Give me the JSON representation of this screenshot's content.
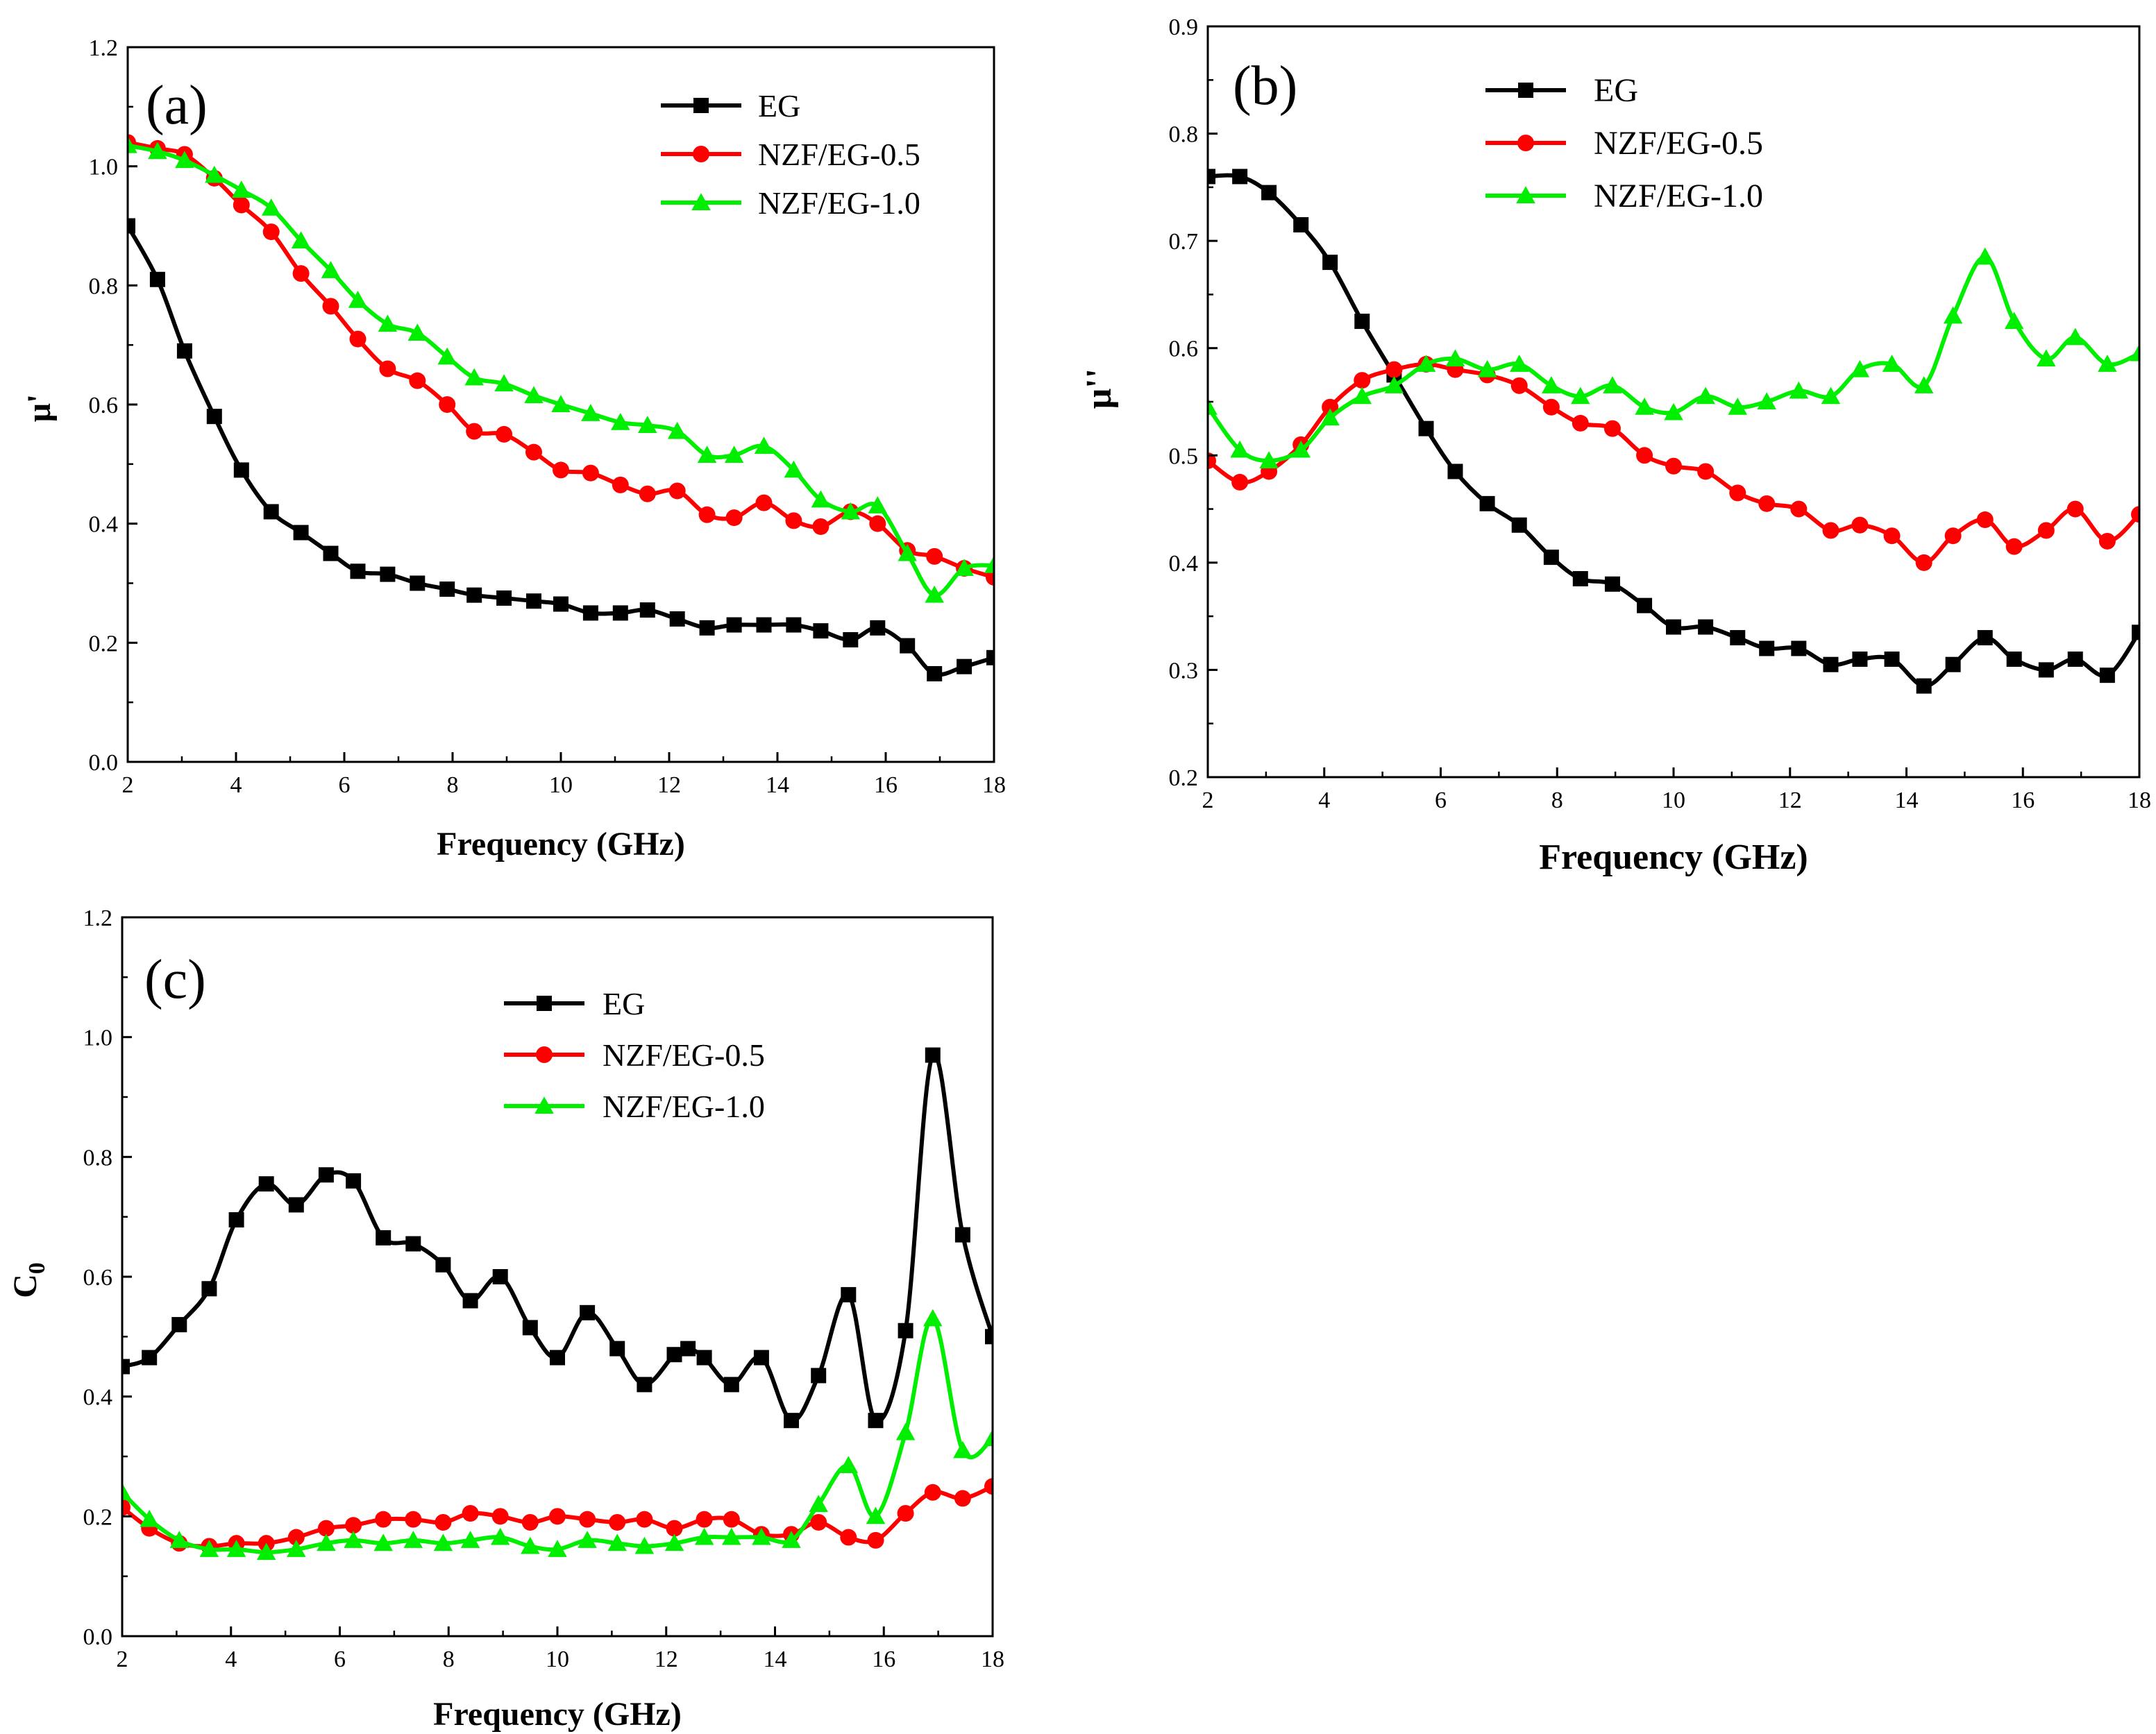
{
  "colors": {
    "EG": "#000000",
    "NZF/EG-0.5": "#ff0000",
    "NZF/EG-1.0": "#00ee00"
  },
  "chart_data": [
    {
      "type": "line",
      "panel": "(a)",
      "title": "",
      "xlabel": "Frequency (GHz)",
      "ylabel": "μ'",
      "xlim": [
        2,
        18
      ],
      "ylim": [
        0.0,
        1.2
      ],
      "xticks": [
        "2",
        "4",
        "6",
        "8",
        "10",
        "12",
        "14",
        "16",
        "18"
      ],
      "yticks": [
        "0.0",
        "0.2",
        "0.4",
        "0.6",
        "0.8",
        "1.0",
        "1.2"
      ],
      "legend_position": "top-right",
      "series": [
        {
          "name": "EG",
          "marker": "square",
          "x": [
            2.0,
            2.55,
            3.05,
            3.6,
            4.1,
            4.65,
            5.2,
            5.75,
            6.25,
            6.8,
            7.35,
            7.9,
            8.4,
            8.95,
            9.5,
            10.0,
            10.55,
            11.1,
            11.6,
            12.15,
            12.7,
            13.2,
            13.75,
            14.3,
            14.8,
            15.35,
            15.85,
            16.4,
            16.9,
            17.45,
            18.0
          ],
          "values": [
            0.9,
            0.81,
            0.69,
            0.58,
            0.49,
            0.42,
            0.385,
            0.35,
            0.32,
            0.315,
            0.3,
            0.29,
            0.28,
            0.275,
            0.27,
            0.265,
            0.25,
            0.25,
            0.255,
            0.24,
            0.225,
            0.23,
            0.23,
            0.23,
            0.22,
            0.205,
            0.225,
            0.195,
            0.148,
            0.16,
            0.175
          ]
        },
        {
          "name": "NZF/EG-0.5",
          "marker": "circle",
          "x": [
            2.0,
            2.55,
            3.05,
            3.6,
            4.1,
            4.65,
            5.2,
            5.75,
            6.25,
            6.8,
            7.35,
            7.9,
            8.4,
            8.95,
            9.5,
            10.0,
            10.55,
            11.1,
            11.6,
            12.15,
            12.7,
            13.2,
            13.75,
            14.3,
            14.8,
            15.35,
            15.85,
            16.4,
            16.9,
            17.45,
            18.0
          ],
          "values": [
            1.04,
            1.03,
            1.02,
            0.98,
            0.935,
            0.89,
            0.82,
            0.765,
            0.71,
            0.66,
            0.64,
            0.6,
            0.555,
            0.55,
            0.52,
            0.49,
            0.485,
            0.465,
            0.45,
            0.455,
            0.415,
            0.41,
            0.435,
            0.405,
            0.395,
            0.42,
            0.4,
            0.355,
            0.345,
            0.325,
            0.31
          ]
        },
        {
          "name": "NZF/EG-1.0",
          "marker": "triangle",
          "x": [
            2.0,
            2.55,
            3.05,
            3.6,
            4.1,
            4.65,
            5.2,
            5.75,
            6.25,
            6.8,
            7.35,
            7.9,
            8.4,
            8.95,
            9.5,
            10.0,
            10.55,
            11.1,
            11.6,
            12.15,
            12.7,
            13.2,
            13.75,
            14.3,
            14.8,
            15.35,
            15.85,
            16.4,
            16.9,
            17.45,
            18.0
          ],
          "values": [
            1.035,
            1.025,
            1.01,
            0.985,
            0.96,
            0.93,
            0.875,
            0.825,
            0.775,
            0.735,
            0.72,
            0.68,
            0.645,
            0.635,
            0.615,
            0.6,
            0.585,
            0.57,
            0.565,
            0.555,
            0.515,
            0.515,
            0.53,
            0.49,
            0.44,
            0.42,
            0.43,
            0.35,
            0.28,
            0.325,
            0.33
          ]
        }
      ]
    },
    {
      "type": "line",
      "panel": "(b)",
      "title": "",
      "xlabel": "Frequency (GHz)",
      "ylabel": "μ''",
      "xlim": [
        2,
        18
      ],
      "ylim": [
        0.2,
        0.9
      ],
      "xticks": [
        "2",
        "4",
        "6",
        "8",
        "10",
        "12",
        "14",
        "16",
        "18"
      ],
      "yticks": [
        "0.2",
        "0.3",
        "0.4",
        "0.5",
        "0.6",
        "0.7",
        "0.8",
        "0.9"
      ],
      "legend_position": "top-center",
      "series": [
        {
          "name": "EG",
          "marker": "square",
          "x": [
            2.0,
            2.55,
            3.05,
            3.6,
            4.1,
            4.65,
            5.2,
            5.75,
            6.25,
            6.8,
            7.35,
            7.9,
            8.4,
            8.95,
            9.5,
            10.0,
            10.55,
            11.1,
            11.6,
            12.15,
            12.7,
            13.2,
            13.75,
            14.3,
            14.8,
            15.35,
            15.85,
            16.4,
            16.9,
            17.45,
            18.0
          ],
          "values": [
            0.76,
            0.76,
            0.745,
            0.715,
            0.68,
            0.625,
            0.575,
            0.525,
            0.485,
            0.455,
            0.435,
            0.405,
            0.385,
            0.38,
            0.36,
            0.34,
            0.34,
            0.33,
            0.32,
            0.32,
            0.305,
            0.31,
            0.31,
            0.285,
            0.305,
            0.33,
            0.31,
            0.3,
            0.31,
            0.295,
            0.335
          ]
        },
        {
          "name": "NZF/EG-0.5",
          "marker": "circle",
          "x": [
            2.0,
            2.55,
            3.05,
            3.6,
            4.1,
            4.65,
            5.2,
            5.75,
            6.25,
            6.8,
            7.35,
            7.9,
            8.4,
            8.95,
            9.5,
            10.0,
            10.55,
            11.1,
            11.6,
            12.15,
            12.7,
            13.2,
            13.75,
            14.3,
            14.8,
            15.35,
            15.85,
            16.4,
            16.9,
            17.45,
            18.0
          ],
          "values": [
            0.495,
            0.475,
            0.485,
            0.51,
            0.545,
            0.57,
            0.58,
            0.585,
            0.58,
            0.575,
            0.565,
            0.545,
            0.53,
            0.525,
            0.5,
            0.49,
            0.485,
            0.465,
            0.455,
            0.45,
            0.43,
            0.435,
            0.425,
            0.4,
            0.425,
            0.44,
            0.415,
            0.43,
            0.45,
            0.42,
            0.445
          ]
        },
        {
          "name": "NZF/EG-1.0",
          "marker": "triangle",
          "x": [
            2.0,
            2.55,
            3.05,
            3.6,
            4.1,
            4.65,
            5.2,
            5.75,
            6.25,
            6.8,
            7.35,
            7.9,
            8.4,
            8.95,
            9.5,
            10.0,
            10.55,
            11.1,
            11.6,
            12.15,
            12.7,
            13.2,
            13.75,
            14.3,
            14.8,
            15.35,
            15.85,
            16.4,
            16.9,
            17.45,
            18.0
          ],
          "values": [
            0.545,
            0.505,
            0.495,
            0.505,
            0.535,
            0.555,
            0.565,
            0.585,
            0.59,
            0.58,
            0.585,
            0.565,
            0.555,
            0.565,
            0.545,
            0.54,
            0.555,
            0.545,
            0.55,
            0.56,
            0.555,
            0.58,
            0.585,
            0.565,
            0.63,
            0.685,
            0.625,
            0.59,
            0.61,
            0.585,
            0.595
          ]
        }
      ]
    },
    {
      "type": "line",
      "panel": "(c)",
      "title": "",
      "xlabel": "Frequency (GHz)",
      "ylabel": "C",
      "ylabel_sub": "0",
      "xlim": [
        2,
        18
      ],
      "ylim": [
        0.0,
        1.2
      ],
      "xticks": [
        "2",
        "4",
        "6",
        "8",
        "10",
        "12",
        "14",
        "16",
        "18"
      ],
      "yticks": [
        "0.0",
        "0.2",
        "0.4",
        "0.6",
        "0.8",
        "1.0",
        "1.2"
      ],
      "legend_position": "top-center",
      "series": [
        {
          "name": "EG",
          "marker": "square",
          "x": [
            2.0,
            2.5,
            3.05,
            3.6,
            4.1,
            4.65,
            5.2,
            5.75,
            6.25,
            6.8,
            7.35,
            7.9,
            8.4,
            8.95,
            9.5,
            10.0,
            10.55,
            11.1,
            11.6,
            12.15,
            12.4,
            12.7,
            13.2,
            13.75,
            14.3,
            14.8,
            15.35,
            15.85,
            16.4,
            16.9,
            17.45,
            18.0
          ],
          "values": [
            0.45,
            0.465,
            0.52,
            0.58,
            0.695,
            0.755,
            0.72,
            0.77,
            0.76,
            0.665,
            0.655,
            0.62,
            0.56,
            0.6,
            0.515,
            0.465,
            0.54,
            0.48,
            0.42,
            0.47,
            0.48,
            0.465,
            0.42,
            0.465,
            0.36,
            0.435,
            0.57,
            0.36,
            0.51,
            0.97,
            0.67,
            0.5
          ]
        },
        {
          "name": "NZF/EG-0.5",
          "marker": "circle",
          "x": [
            2.0,
            2.5,
            3.05,
            3.6,
            4.1,
            4.65,
            5.2,
            5.75,
            6.25,
            6.8,
            7.35,
            7.9,
            8.4,
            8.95,
            9.5,
            10.0,
            10.55,
            11.1,
            11.6,
            12.15,
            12.7,
            13.2,
            13.75,
            14.3,
            14.8,
            15.35,
            15.85,
            16.4,
            16.9,
            17.45,
            18.0
          ],
          "values": [
            0.215,
            0.18,
            0.155,
            0.15,
            0.155,
            0.155,
            0.165,
            0.18,
            0.185,
            0.195,
            0.195,
            0.19,
            0.205,
            0.2,
            0.19,
            0.2,
            0.195,
            0.19,
            0.195,
            0.18,
            0.195,
            0.195,
            0.17,
            0.17,
            0.19,
            0.165,
            0.16,
            0.205,
            0.24,
            0.23,
            0.25
          ]
        },
        {
          "name": "NZF/EG-1.0",
          "marker": "triangle",
          "x": [
            2.0,
            2.5,
            3.05,
            3.6,
            4.1,
            4.65,
            5.2,
            5.75,
            6.25,
            6.8,
            7.35,
            7.9,
            8.4,
            8.95,
            9.5,
            10.0,
            10.55,
            11.1,
            11.6,
            12.15,
            12.7,
            13.2,
            13.75,
            14.3,
            14.8,
            15.35,
            15.85,
            16.4,
            16.9,
            17.45,
            18.0
          ],
          "values": [
            0.24,
            0.195,
            0.16,
            0.145,
            0.145,
            0.14,
            0.145,
            0.155,
            0.16,
            0.155,
            0.16,
            0.155,
            0.16,
            0.165,
            0.15,
            0.145,
            0.16,
            0.155,
            0.15,
            0.155,
            0.165,
            0.165,
            0.165,
            0.16,
            0.22,
            0.285,
            0.2,
            0.34,
            0.53,
            0.31,
            0.33
          ]
        }
      ]
    }
  ]
}
